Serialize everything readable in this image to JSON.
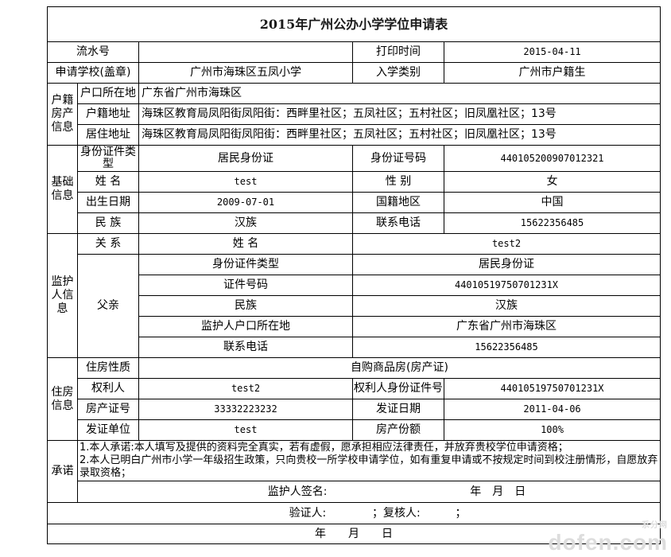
{
  "title": "2015年广州公办小学学位申请表",
  "header": {
    "serial_label": "流水号",
    "serial_value": "",
    "print_time_label": "打印时间",
    "print_time_value": "2015-04-11",
    "school_label": "申请学校(盖章)",
    "school_value": "广州市海珠区五凤小学",
    "category_label": "入学类别",
    "category_value": "广州市户籍生"
  },
  "household": {
    "group_label": "户籍房产信息",
    "hukou_label": "户口所在地",
    "hukou_value": "广东省广州市海珠区",
    "address_label": "户籍地址",
    "address_value": "海珠区教育局凤阳街凤阳街：西畔里社区；五凤社区；五村社区；旧凤凰社区；13号",
    "residence_label": "居住地址",
    "residence_value": "海珠区教育局凤阳街凤阳街：西畔里社区；五凤社区；五村社区；旧凤凰社区；13号"
  },
  "basic": {
    "group_label": "基础信息",
    "id_type_label": "身份证件类型",
    "id_type_value": "居民身份证",
    "id_no_label": "身份证号码",
    "id_no_value": "440105200907012321",
    "name_label": "姓 名",
    "name_value": "test",
    "gender_label": "性 别",
    "gender_value": "女",
    "birth_label": "出生日期",
    "birth_value": "2009-07-01",
    "nationality_label": "国籍地区",
    "nationality_value": "中国",
    "ethnic_label": "民 族",
    "ethnic_value": "汉族",
    "phone_label": "联系电话",
    "phone_value": "15622356485"
  },
  "guardian": {
    "group_label": "监护人信息",
    "relation_label": "关 系",
    "relation_value": "父亲",
    "name_label": "姓 名",
    "name_value": "test2",
    "id_type_label": "身份证件类型",
    "id_type_value": "居民身份证",
    "id_no_label": "证件号码",
    "id_no_value": "44010519750701231X",
    "ethnic_label": "民族",
    "ethnic_value": "汉族",
    "hukou_label": "监护人户口所在地",
    "hukou_value": "广东省广州市海珠区",
    "phone_label": "联系电话",
    "phone_value": "15622356485"
  },
  "housing": {
    "group_label": "住房信息",
    "nature_label": "住房性质",
    "nature_value": "自购商品房(房产证)",
    "owner_label": "权利人",
    "owner_value": "test2",
    "owner_id_label": "权利人身份证件号",
    "owner_id_value": "44010519750701231X",
    "cert_no_label": "房产证号",
    "cert_no_value": "33332223232",
    "cert_date_label": "发证日期",
    "cert_date_value": "2011-04-06",
    "issuer_label": "发证单位",
    "issuer_value": "test",
    "share_label": "房产份额",
    "share_value": "100%"
  },
  "promise": {
    "group_label": "承诺",
    "line1": "1.本人承诺:本人填写及提供的资料完全真实，若有虚假，愿承担相应法律责任，并放弃贵校学位申请资格；",
    "line2": "2.本人已明白广州市小学一年级招生政策，只向贵校一所学校申请学位，如有重复申请或不按规定时间到校注册情形，自愿放弃录取资格；",
    "signature_label": "监护人签名:",
    "signature_date": "年　月　日"
  },
  "verify": {
    "verifier_label": "验证人:",
    "reviewer_label": "；复核人:",
    "end": "；",
    "date": "年　　月　　日"
  },
  "watermark": {
    "top": "系分网",
    "main": "dofen.com"
  }
}
